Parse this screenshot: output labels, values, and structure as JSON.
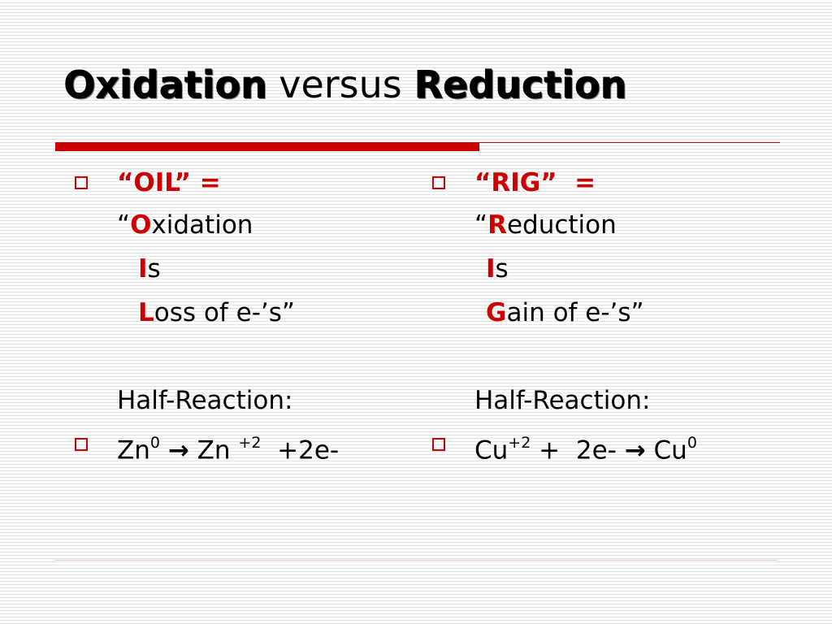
{
  "title": {
    "part1": "Oxidation",
    "part2": " versus ",
    "part3": "Reduction"
  },
  "left": {
    "heading": "“OIL” =",
    "quote_open": "“",
    "letter1": "O",
    "rest1": "xidation",
    "letter2": "I",
    "rest2": "s",
    "letter3": "L",
    "rest3": "oss of e-’s”",
    "half_label": "Half-Reaction:",
    "eq": {
      "a": "Zn",
      "a_sup": "0",
      "arrow": "→",
      "b": " Zn ",
      "b_sup": "+2",
      "c": "  +2e-"
    }
  },
  "right": {
    "heading": "“RIG”  =",
    "quote_open": "“",
    "letter1": "R",
    "rest1": "eduction",
    "letter2": "I",
    "rest2": "s",
    "letter3": "G",
    "rest3": "ain of e-’s”",
    "half_label": "Half-Reaction:",
    "eq": {
      "a": "Cu",
      "a_sup": "+2",
      "b": " +  2e- ",
      "arrow": "→",
      "c": " Cu",
      "c_sup": "0"
    }
  },
  "colors": {
    "accent": "#cc0000",
    "text": "#000000",
    "background": "#ffffff"
  }
}
